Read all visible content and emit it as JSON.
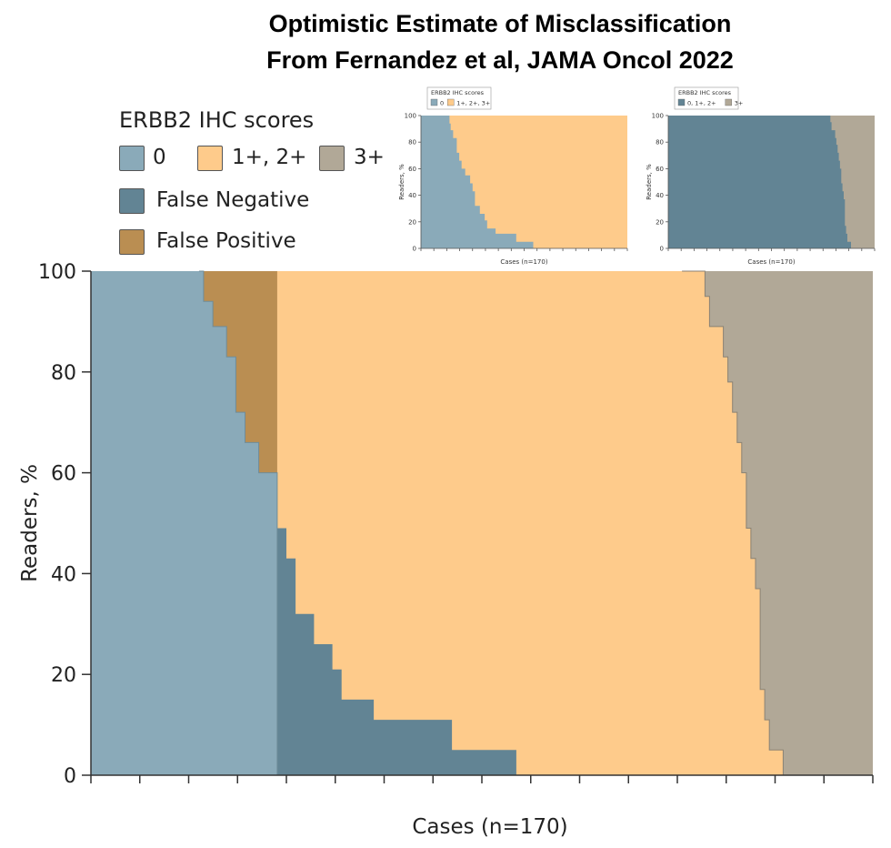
{
  "title": {
    "line1": "Optimistic Estimate of Misclassification",
    "line2": "From Fernandez et al, JAMA Oncol 2022"
  },
  "legend": {
    "title": "ERBB2 IHC scores",
    "items": [
      {
        "label": "0",
        "color": "#8aaab9"
      },
      {
        "label": "1+, 2+",
        "color": "#fecb8b"
      },
      {
        "label": "3+",
        "color": "#b1a897"
      },
      {
        "label": "False Negative",
        "color": "#628494"
      },
      {
        "label": "False Positive",
        "color": "#ba8e52"
      }
    ]
  },
  "chart_data": [
    {
      "type": "area",
      "title": "",
      "xlabel": "Cases (n=170)",
      "ylabel": "Readers, %",
      "xlim": [
        0,
        170
      ],
      "ylim": [
        0,
        100
      ],
      "yticks": [
        0,
        20,
        40,
        60,
        80,
        100
      ],
      "xtick_count": 16,
      "colors": {
        "zero": "#8aaab9",
        "mid": "#fecb8b",
        "three": "#b1a897",
        "false_negative": "#628494",
        "false_positive": "#ba8e52"
      },
      "boundary_zero_upper": {
        "x": [
          23.5,
          24.5,
          26.5,
          29.5,
          31.5,
          33.5,
          36.5,
          40.5,
          40.5
        ],
        "y": [
          100,
          94,
          89,
          83,
          72,
          66,
          60,
          55,
          0
        ]
      },
      "boundary_false_negative_upper": {
        "x": [
          40.5,
          42.5,
          44.5,
          48.5,
          52.5,
          54.5,
          61.5,
          78.5,
          92.5,
          92.5
        ],
        "y": [
          49,
          43,
          32,
          26,
          21,
          15,
          11,
          5,
          0,
          0
        ]
      },
      "boundary_three_lower": {
        "x": [
          128.5,
          133.5,
          134.5,
          137.5,
          138.5,
          139.5,
          140.5,
          141.5,
          142.5,
          143.5,
          144.5,
          145.5,
          146.5,
          147.5,
          150.5
        ],
        "y": [
          100,
          95,
          89,
          83,
          78,
          72,
          66,
          60,
          49,
          43,
          37,
          17,
          11,
          5,
          0
        ]
      }
    },
    {
      "type": "area",
      "legend_title": "ERBB2 IHC scores",
      "legend": [
        "0",
        "1+, 2+, 3+"
      ],
      "xlabel": "Cases (n=170)",
      "ylabel": "Readers, %",
      "ylim": [
        0,
        100
      ],
      "yticks": [
        0,
        20,
        40,
        60,
        80,
        100
      ]
    },
    {
      "type": "area",
      "legend_title": "ERBB2 IHC scores",
      "legend": [
        "0, 1+, 2+",
        "3+"
      ],
      "xlabel": "Cases (n=170)",
      "ylabel": "Readers, %",
      "ylim": [
        0,
        100
      ],
      "yticks": [
        0,
        20,
        40,
        60,
        80,
        100
      ]
    }
  ]
}
